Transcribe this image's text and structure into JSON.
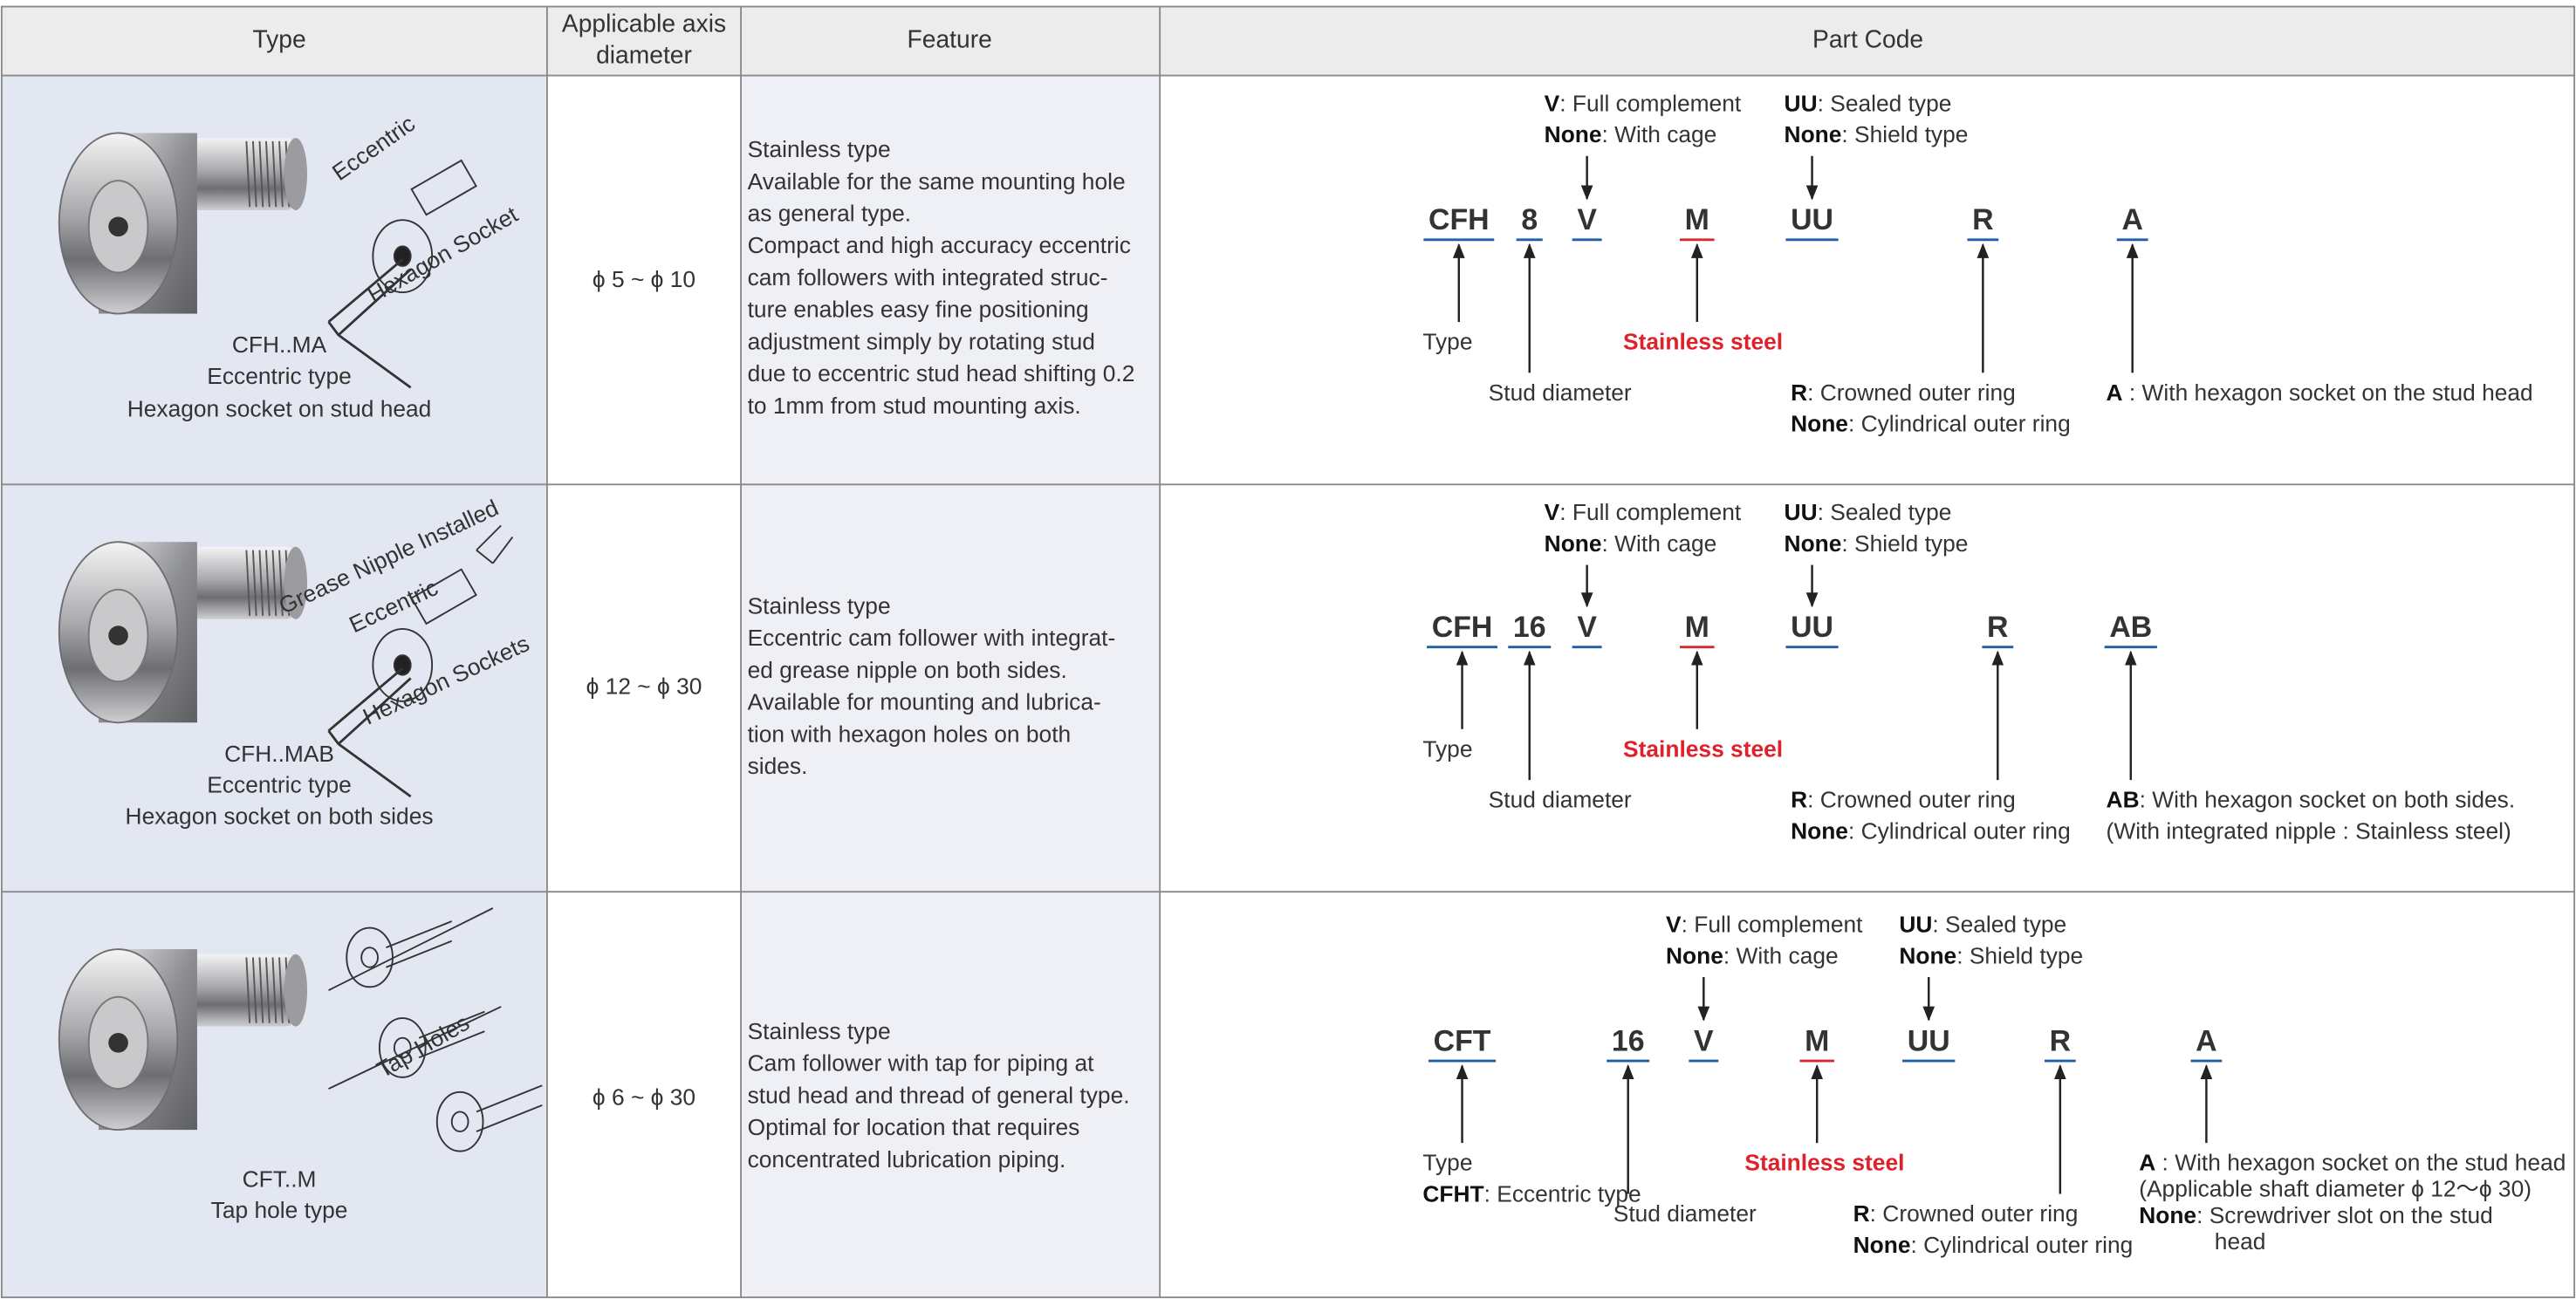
{
  "header": {
    "columns": [
      [
        "Type"
      ],
      [
        "Applicable axis",
        "diameter"
      ],
      [
        "Feature"
      ],
      [
        "Part Code"
      ]
    ]
  },
  "code_colors": {
    "blue": "#1f5fa8",
    "red": "#d7282f"
  },
  "rows": [
    {
      "type": [
        "CFH..MA",
        "Eccentric type",
        "Hexagon socket on stud head"
      ],
      "image_labels": [
        "Eccentric",
        "Hexagon Socket"
      ],
      "diameter": "ϕ 5 ~ ϕ 10",
      "feature": [
        "Stainless type",
        "Available for the same mounting hole",
        "as general type.",
        "Compact and high accuracy eccentric",
        "cam followers with integrated struc-",
        "ture enables easy fine positioning",
        "adjustment simply by rotating stud",
        "due to eccentric stud head shifting 0.2",
        "to 1mm from stud mounting axis."
      ],
      "codes": [
        {
          "text": "CFH",
          "color": "blue"
        },
        {
          "text": "8",
          "color": "blue"
        },
        {
          "text": "V",
          "color": "blue"
        },
        {
          "text": "M",
          "color": "red"
        },
        {
          "text": "UU",
          "color": "blue"
        },
        {
          "text": "R",
          "color": "blue"
        },
        {
          "text": "A",
          "color": "blue"
        }
      ],
      "annotations": [
        {
          "lines": [
            {
              "bold": "V",
              "text": ": Full complement"
            },
            {
              "bold": "None",
              "text": ": With cage"
            }
          ]
        },
        {
          "lines": [
            {
              "bold": "UU",
              "text": ": Sealed type"
            },
            {
              "bold": "None",
              "text": ": Shield type"
            }
          ]
        },
        {
          "lines": [
            {
              "text": "Type"
            }
          ]
        },
        {
          "lines": [
            {
              "text": "Stud diameter"
            }
          ]
        },
        {
          "lines": [
            {
              "bold": "Stainless steel"
            }
          ],
          "color": "#e0202a"
        },
        {
          "lines": [
            {
              "bold": "R",
              "text": ": Crowned outer ring"
            },
            {
              "bold": "None",
              "text": ": Cylindrical outer ring"
            }
          ]
        },
        {
          "lines": [
            {
              "bold": "A",
              "text": " : With hexagon socket on the stud head"
            }
          ]
        }
      ]
    },
    {
      "type": [
        "CFH..MAB",
        "Eccentric type",
        "Hexagon socket on both sides"
      ],
      "image_labels": [
        "Grease Nipple Installed",
        "Eccentric",
        "Hexagon Sockets"
      ],
      "diameter": "ϕ 12 ~ ϕ 30",
      "feature": [
        "Stainless type",
        "Eccentric cam follower with integrat-",
        "ed grease nipple on both sides.",
        "Available for mounting and lubrica-",
        "tion with hexagon holes on both",
        "sides."
      ],
      "codes": [
        {
          "text": "CFH",
          "color": "blue"
        },
        {
          "text": "16",
          "color": "blue"
        },
        {
          "text": "V",
          "color": "blue"
        },
        {
          "text": "M",
          "color": "red"
        },
        {
          "text": "UU",
          "color": "blue"
        },
        {
          "text": "R",
          "color": "blue"
        },
        {
          "text": "AB",
          "color": "blue"
        }
      ],
      "annotations": [
        {
          "lines": [
            {
              "bold": "V",
              "text": ": Full complement"
            },
            {
              "bold": "None",
              "text": ": With cage"
            }
          ]
        },
        {
          "lines": [
            {
              "bold": "UU",
              "text": ": Sealed type"
            },
            {
              "bold": "None",
              "text": ": Shield type"
            }
          ]
        },
        {
          "lines": [
            {
              "text": "Type"
            }
          ]
        },
        {
          "lines": [
            {
              "text": "Stud diameter"
            }
          ]
        },
        {
          "lines": [
            {
              "bold": "Stainless steel"
            }
          ],
          "color": "#e0202a"
        },
        {
          "lines": [
            {
              "bold": "R",
              "text": ": Crowned outer ring"
            },
            {
              "bold": "None",
              "text": ": Cylindrical outer ring"
            }
          ]
        },
        {
          "lines": [
            {
              "bold": "AB",
              "text": ": With hexagon socket on both sides."
            },
            {
              "text": "(With integrated nipple : Stainless steel)"
            }
          ]
        }
      ]
    },
    {
      "type": [
        "CFT..M",
        "Tap hole type"
      ],
      "image_labels": [
        "Tap Holes"
      ],
      "diameter": "ϕ 6 ~ ϕ 30",
      "feature": [
        "Stainless type",
        "Cam follower with tap for piping at",
        "stud head and thread of general type.",
        "Optimal for location that requires",
        "concentrated lubrication piping."
      ],
      "codes": [
        {
          "text": "CFT",
          "color": "blue"
        },
        {
          "text": "16",
          "color": "blue"
        },
        {
          "text": "V",
          "color": "blue"
        },
        {
          "text": "M",
          "color": "red"
        },
        {
          "text": "UU",
          "color": "blue"
        },
        {
          "text": "R",
          "color": "blue"
        },
        {
          "text": "A",
          "color": "blue"
        }
      ],
      "annotations": [
        {
          "lines": [
            {
              "bold": "V",
              "text": ": Full complement"
            },
            {
              "bold": "None",
              "text": ": With cage"
            }
          ]
        },
        {
          "lines": [
            {
              "bold": "UU",
              "text": ": Sealed type"
            },
            {
              "bold": "None",
              "text": ": Shield type"
            }
          ]
        },
        {
          "lines": [
            {
              "text": "Type"
            },
            {
              "bold": "CFHT",
              "text": ": Eccentric type"
            }
          ]
        },
        {
          "lines": [
            {
              "text": "Stud diameter"
            }
          ]
        },
        {
          "lines": [
            {
              "bold": "Stainless steel"
            }
          ],
          "color": "#e0202a"
        },
        {
          "lines": [
            {
              "bold": "R",
              "text": ": Crowned outer ring"
            },
            {
              "bold": "None",
              "text": ": Cylindrical outer ring"
            }
          ]
        },
        {
          "lines": [
            {
              "bold": "A",
              "text": " : With hexagon socket on the stud head"
            },
            {
              "text": "(Applicable shaft diameter ϕ 12～ϕ 30)"
            },
            {
              "bold": "None",
              "text": ": Screwdriver slot on the stud"
            },
            {
              "text": "head"
            }
          ]
        }
      ]
    }
  ]
}
